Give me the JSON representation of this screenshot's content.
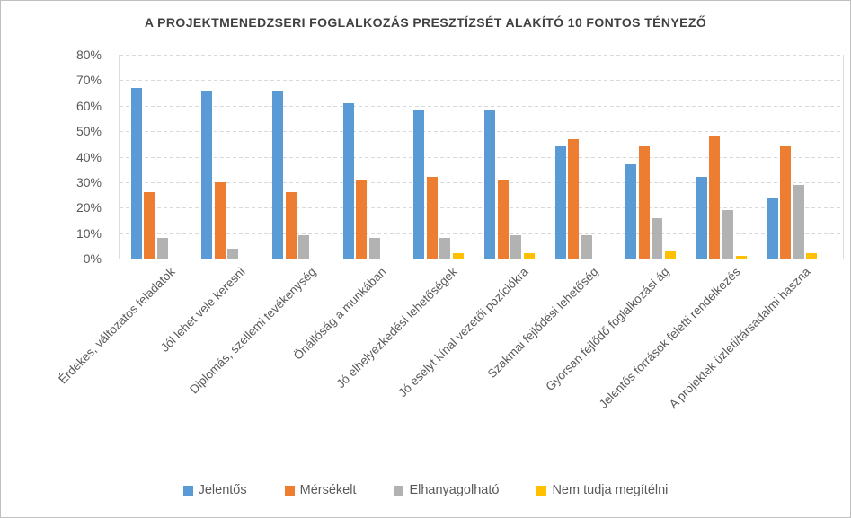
{
  "chart_data": {
    "type": "bar",
    "title": "A PROJEKTMENEDZSERI FOGLALKOZÁS PRESZTÍZSÉT ALAKÍTÓ 10 FONTOS TÉNYEZŐ",
    "categories": [
      "Érdekes, változatos feladatok",
      "Jól lehet vele keresni",
      "Diplomás, szellemi tevékenység",
      "Önállóság a munkában",
      "Jó elhelyezkedési lehetőségek",
      "Jó esélyt kínál vezetői pozíciókra",
      "Szakmai fejlődési lehetőség",
      "Gyorsan fejlődő foglalkozási ág",
      "Jelentős források feletti rendelkezés",
      "A projektek üzleti/társadalmi haszna"
    ],
    "series": [
      {
        "name": "Jelentős",
        "color": "#5B9BD5",
        "pattern": "solid",
        "values": [
          67,
          66,
          66,
          61,
          58,
          58,
          44,
          37,
          32,
          24
        ]
      },
      {
        "name": "Mérsékelt",
        "color": "#ED7D31",
        "pattern": "solid",
        "values": [
          26,
          30,
          26,
          31,
          32,
          31,
          47,
          44,
          48,
          44
        ]
      },
      {
        "name": "Elhanyagolható",
        "color": "#A5A5A5",
        "pattern": "dots",
        "values": [
          8,
          4,
          9,
          8,
          8,
          9,
          9,
          16,
          19,
          29
        ]
      },
      {
        "name": "Nem tudja megítélni",
        "color": "#FFC000",
        "pattern": "solid",
        "values": [
          0,
          0,
          0,
          0,
          2,
          2,
          0,
          3,
          1,
          2
        ]
      }
    ],
    "y_axis": {
      "ticks": [
        "80%",
        "70%",
        "60%",
        "50%",
        "40%",
        "30%",
        "20%",
        "10%",
        "0%"
      ],
      "min": 0,
      "max": 80,
      "unit": "%"
    },
    "grid": {
      "horizontal": true,
      "style": "dashed",
      "color": "#D9D9D9"
    },
    "axis_line_color": "#A6A6A6",
    "text_color": "#595959",
    "title_color": "#404040",
    "legend_position": "bottom"
  }
}
